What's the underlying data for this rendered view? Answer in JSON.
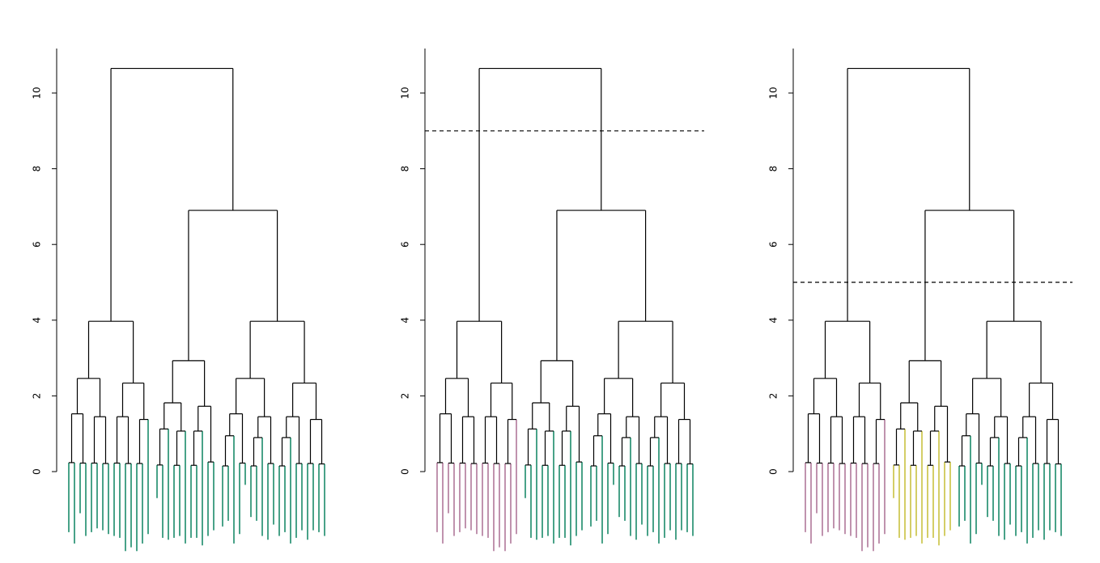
{
  "figure": {
    "panel_count": 3,
    "colors": {
      "green": "#1b8a6b",
      "pink": "#b0789a",
      "yellow": "#c9c241",
      "branch": "#000000"
    }
  },
  "chart_data": [
    {
      "type": "dendrogram",
      "title": "",
      "xlabel": "",
      "ylabel": "",
      "ylim": [
        -2.1,
        11.5
      ],
      "yticks": [
        "0",
        "2",
        "4",
        "6",
        "8",
        "10"
      ],
      "cut_height": null,
      "leaf_count": 45,
      "merge_heights": {
        "root": 10.65,
        "right_group": 6.9,
        "subtree_a": 3.97,
        "subtree_b": 2.93,
        "subtree_c": 3.97
      },
      "cluster_colors": [
        "green"
      ],
      "grid": false,
      "legend": false
    },
    {
      "type": "dendrogram",
      "title": "",
      "xlabel": "",
      "ylabel": "",
      "ylim": [
        -2.1,
        11.5
      ],
      "yticks": [
        "0",
        "2",
        "4",
        "6",
        "8",
        "10"
      ],
      "cut_height": 9,
      "leaf_count": 45,
      "merge_heights": {
        "root": 10.65,
        "right_group": 6.9,
        "subtree_a": 3.97,
        "subtree_b": 2.93,
        "subtree_c": 3.97
      },
      "cluster_colors": [
        "pink",
        "green"
      ],
      "grid": false,
      "legend": false
    },
    {
      "type": "dendrogram",
      "title": "",
      "xlabel": "",
      "ylabel": "",
      "ylim": [
        -2.1,
        11.5
      ],
      "yticks": [
        "0",
        "2",
        "4",
        "6",
        "8",
        "10"
      ],
      "cut_height": 5,
      "leaf_count": 45,
      "merge_heights": {
        "root": 10.65,
        "right_group": 6.9,
        "subtree_a": 3.97,
        "subtree_b": 2.93,
        "subtree_c": 3.97
      },
      "cluster_colors": [
        "pink",
        "yellow",
        "green"
      ],
      "grid": false,
      "legend": false
    }
  ]
}
